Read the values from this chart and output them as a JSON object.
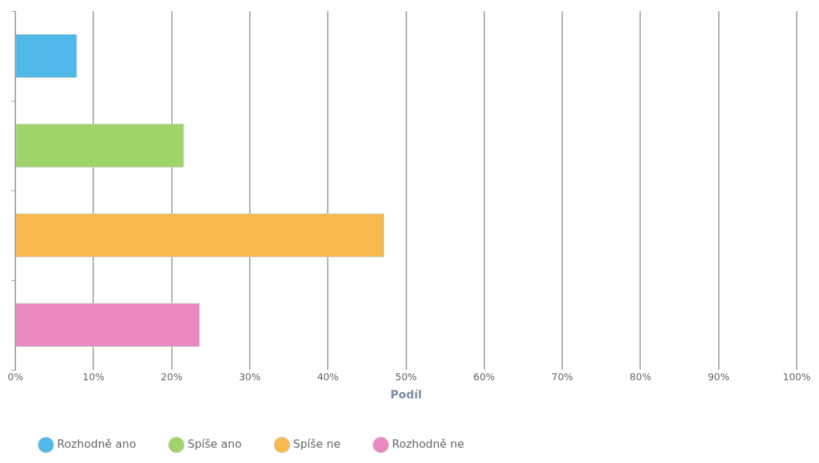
{
  "chart_data": {
    "type": "bar",
    "orientation": "horizontal",
    "categories": [
      null,
      null,
      null,
      null
    ],
    "series": [
      {
        "name": "Rozhodně ano",
        "color": "#4fb9ea",
        "values": [
          7.9,
          null,
          null,
          null
        ]
      },
      {
        "name": "Spíše ano",
        "color": "#9ed46a",
        "values": [
          null,
          21.6,
          null,
          null
        ]
      },
      {
        "name": "Spíše ne",
        "color": "#f7b84e",
        "values": [
          null,
          null,
          47.2,
          null
        ]
      },
      {
        "name": "Rozhodně ne",
        "color": "#ea89c0",
        "values": [
          null,
          null,
          null,
          23.6
        ]
      }
    ],
    "xlabel": "Podíl",
    "xlim": [
      0,
      100
    ],
    "xticks": [
      {
        "value": 0,
        "label": "0%"
      },
      {
        "value": 10,
        "label": "10%"
      },
      {
        "value": 20,
        "label": "20%"
      },
      {
        "value": 30,
        "label": "30%"
      },
      {
        "value": 40,
        "label": "40%"
      },
      {
        "value": 50,
        "label": "50%"
      },
      {
        "value": 60,
        "label": "60%"
      },
      {
        "value": 70,
        "label": "70%"
      },
      {
        "value": 80,
        "label": "80%"
      },
      {
        "value": 90,
        "label": "90%"
      },
      {
        "value": 100,
        "label": "100%"
      }
    ],
    "grid": "x",
    "legend": "bottom",
    "marker": "circle",
    "tick_labels": "x"
  }
}
